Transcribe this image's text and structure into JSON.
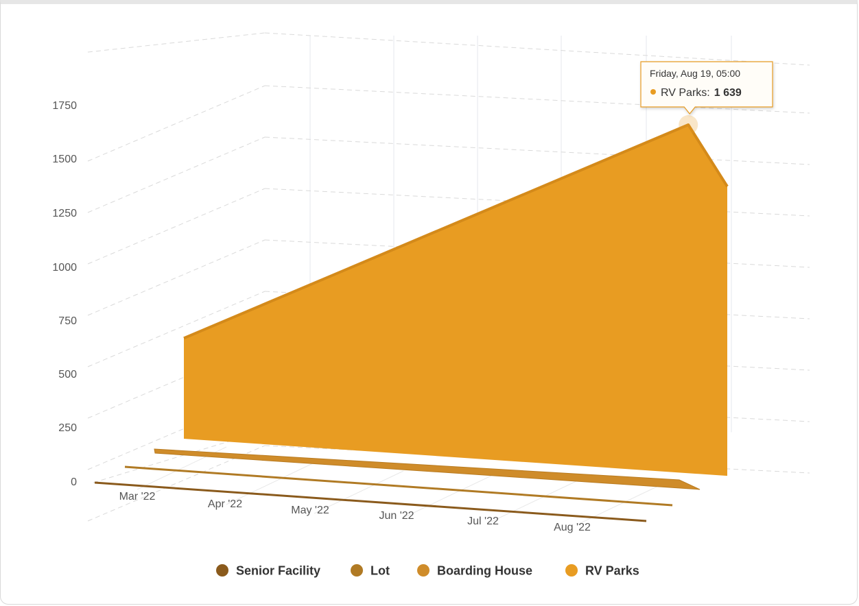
{
  "chart_data": {
    "type": "area",
    "title": "",
    "xlabel": "",
    "ylabel": "",
    "x_ticks": [
      "Mar '22",
      "Apr '22",
      "May '22",
      "Jun '22",
      "Jul '22",
      "Aug '22"
    ],
    "y_ticks": [
      "0",
      "250",
      "500",
      "750",
      "1000",
      "1250",
      "1500",
      "1750"
    ],
    "ylim": [
      0,
      2000
    ],
    "xlim": [
      "2022-03-01",
      "2022-08-25"
    ],
    "grid": true,
    "three_d": true,
    "legend_position": "bottom",
    "series": [
      {
        "name": "Senior Facility",
        "color": "#8a5a1c",
        "x": [
          "2022-03-01",
          "2022-08-25"
        ],
        "values": [
          0,
          0
        ]
      },
      {
        "name": "Lot",
        "color": "#b07a24",
        "x": [
          "2022-03-01",
          "2022-08-25"
        ],
        "values": [
          0,
          0
        ]
      },
      {
        "name": "Boarding House",
        "color": "#cf8c2a",
        "x": [
          "2022-03-01",
          "2022-08-25"
        ],
        "values": [
          20,
          20
        ]
      },
      {
        "name": "RV Parks",
        "color": "#e89c22",
        "x": [
          "2022-03-01",
          "2022-08-19",
          "2022-08-25"
        ],
        "values": [
          470,
          1639,
          1300
        ]
      }
    ],
    "tooltip": {
      "date": "Friday, Aug 19, 05:00",
      "series": "RV Parks",
      "separator": ":",
      "value": "1 639"
    }
  }
}
